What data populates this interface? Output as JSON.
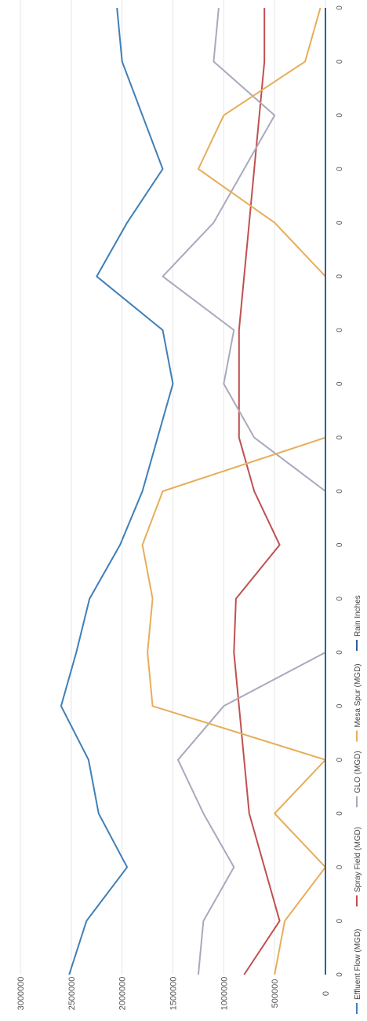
{
  "chart_data": {
    "type": "line",
    "orientation": "rotated-90",
    "title": "",
    "xlabel": "",
    "ylabel": "",
    "ylim": [
      0,
      3000000
    ],
    "y_ticks": [
      "0",
      "500000",
      "1000000",
      "1500000",
      "2000000",
      "2500000",
      "3000000"
    ],
    "x": [
      "0",
      "0",
      "0",
      "0",
      "0",
      "0",
      "0",
      "0",
      "0",
      "0",
      "0",
      "0",
      "0",
      "0",
      "0",
      "0",
      "0",
      "0",
      "0"
    ],
    "grid": true,
    "legend_position": "bottom",
    "series": [
      {
        "name": "Effluent Flow (MGD)",
        "color": "#3f7fb8",
        "values": [
          2520000,
          2350000,
          1950000,
          2230000,
          2330000,
          2600000,
          2450000,
          2320000,
          2020000,
          1800000,
          1650000,
          1500000,
          1600000,
          2250000,
          1950000,
          1600000,
          1800000,
          2000000,
          2050000
        ]
      },
      {
        "name": "Spray Field (MGD)",
        "color": "#c05050",
        "values": [
          800000,
          450000,
          600000,
          750000,
          800000,
          850000,
          900000,
          880000,
          450000,
          700000,
          850000,
          850000,
          850000,
          800000,
          750000,
          700000,
          650000,
          600000,
          600000
        ]
      },
      {
        "name": "GLO (MGD)",
        "color": "#a9a9bd",
        "values": [
          1250000,
          1200000,
          900000,
          1200000,
          1450000,
          1000000,
          0,
          0,
          0,
          0,
          700000,
          1000000,
          900000,
          1600000,
          1100000,
          800000,
          500000,
          1100000,
          1050000
        ]
      },
      {
        "name": "Mesa Spur (MGD)",
        "color": "#e6ae5a",
        "values": [
          500000,
          400000,
          0,
          500000,
          0,
          1700000,
          1750000,
          1700000,
          1800000,
          1600000,
          0,
          0,
          0,
          0,
          500000,
          1250000,
          1000000,
          200000,
          50000
        ]
      },
      {
        "name": "Rain Inches",
        "color": "#2f5f95",
        "values": [
          0,
          0,
          0,
          0,
          0,
          0,
          0,
          0,
          0,
          0,
          0,
          0,
          0,
          0,
          0,
          0,
          0,
          0,
          0
        ]
      }
    ]
  }
}
